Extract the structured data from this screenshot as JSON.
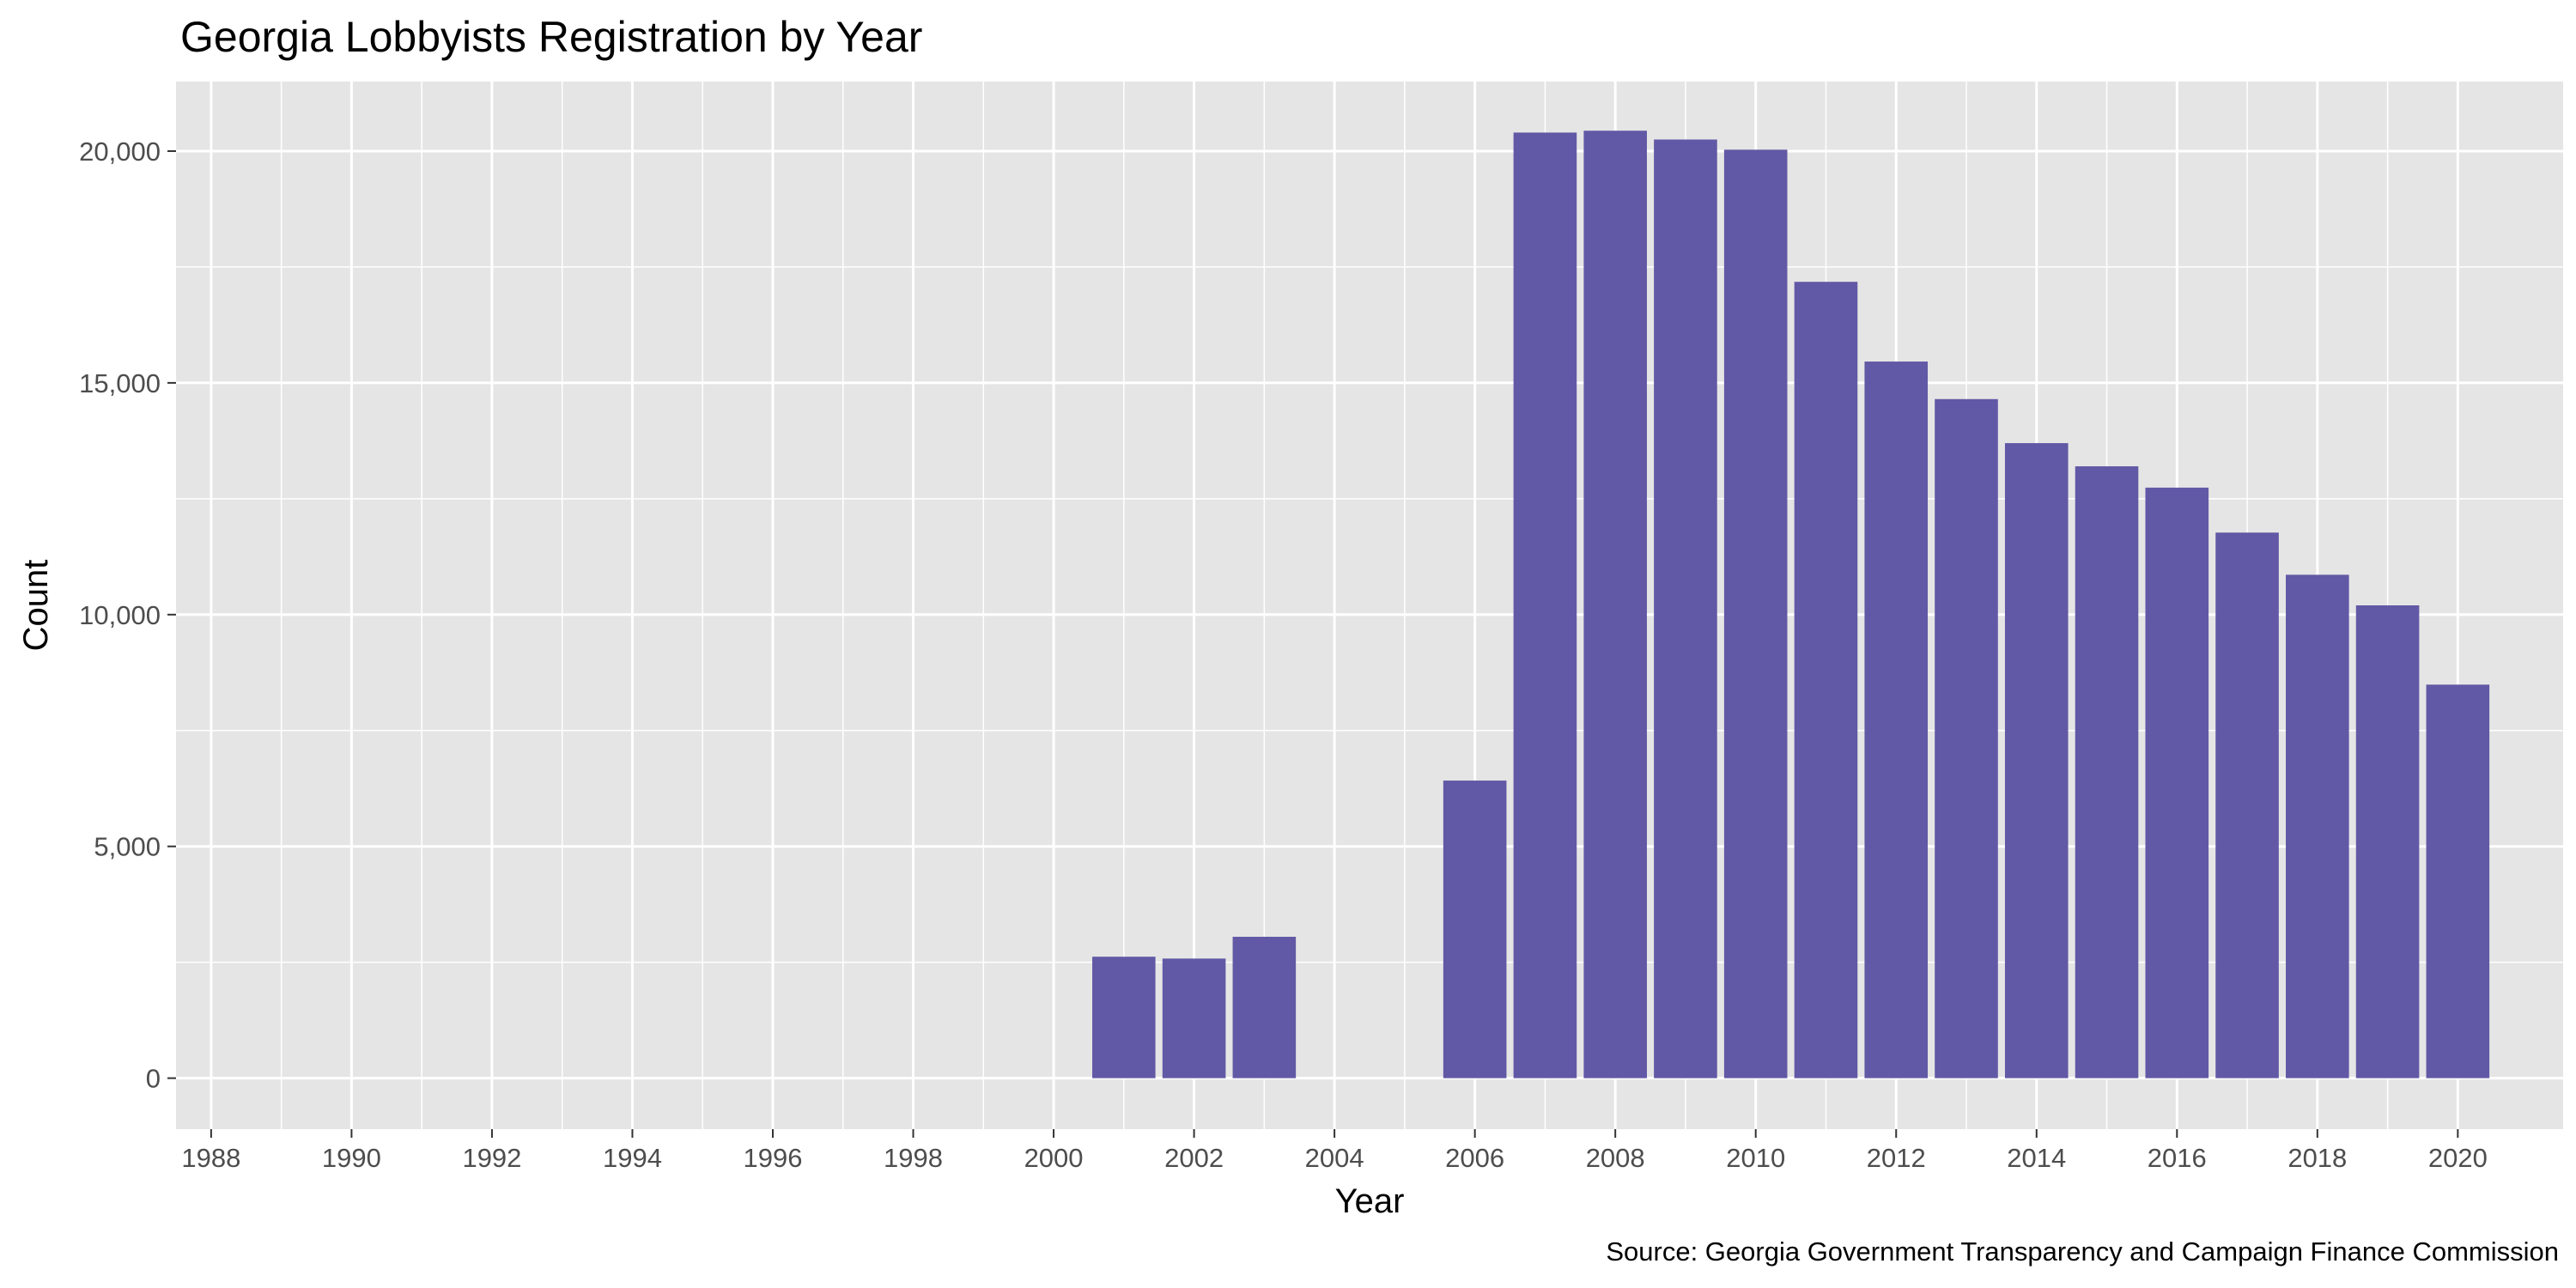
{
  "chart_data": {
    "type": "bar",
    "title": "Georgia Lobbyists Registration by Year",
    "xlabel": "Year",
    "ylabel": "Count",
    "caption": "Source: Georgia Government Transparency and Campaign Finance Commission",
    "x": [
      2001,
      2002,
      2003,
      2006,
      2007,
      2008,
      2009,
      2010,
      2011,
      2012,
      2013,
      2014,
      2015,
      2016,
      2017,
      2018,
      2019,
      2020
    ],
    "values": [
      2620,
      2580,
      3050,
      6420,
      20400,
      20440,
      20250,
      20030,
      17180,
      15460,
      14650,
      13700,
      13200,
      12740,
      11770,
      10860,
      10200,
      8490
    ],
    "xlim": [
      1987.5,
      2021.5
    ],
    "ylim": [
      -1100,
      21500
    ],
    "x_ticks": [
      1988,
      1990,
      1992,
      1994,
      1996,
      1998,
      2000,
      2002,
      2004,
      2006,
      2008,
      2010,
      2012,
      2014,
      2016,
      2018,
      2020
    ],
    "x_tick_labels": [
      "1988",
      "1990",
      "1992",
      "1994",
      "1996",
      "1998",
      "2000",
      "2002",
      "2004",
      "2006",
      "2008",
      "2010",
      "2012",
      "2014",
      "2016",
      "2018",
      "2020"
    ],
    "y_ticks": [
      0,
      5000,
      10000,
      15000,
      20000
    ],
    "y_tick_labels": [
      "0",
      "5,000",
      "10,000",
      "15,000",
      "20,000"
    ],
    "bar_color": "#6159a5",
    "panel_color": "#e5e5e5",
    "grid_color": "#ffffff",
    "grid": true,
    "legend": "none"
  }
}
